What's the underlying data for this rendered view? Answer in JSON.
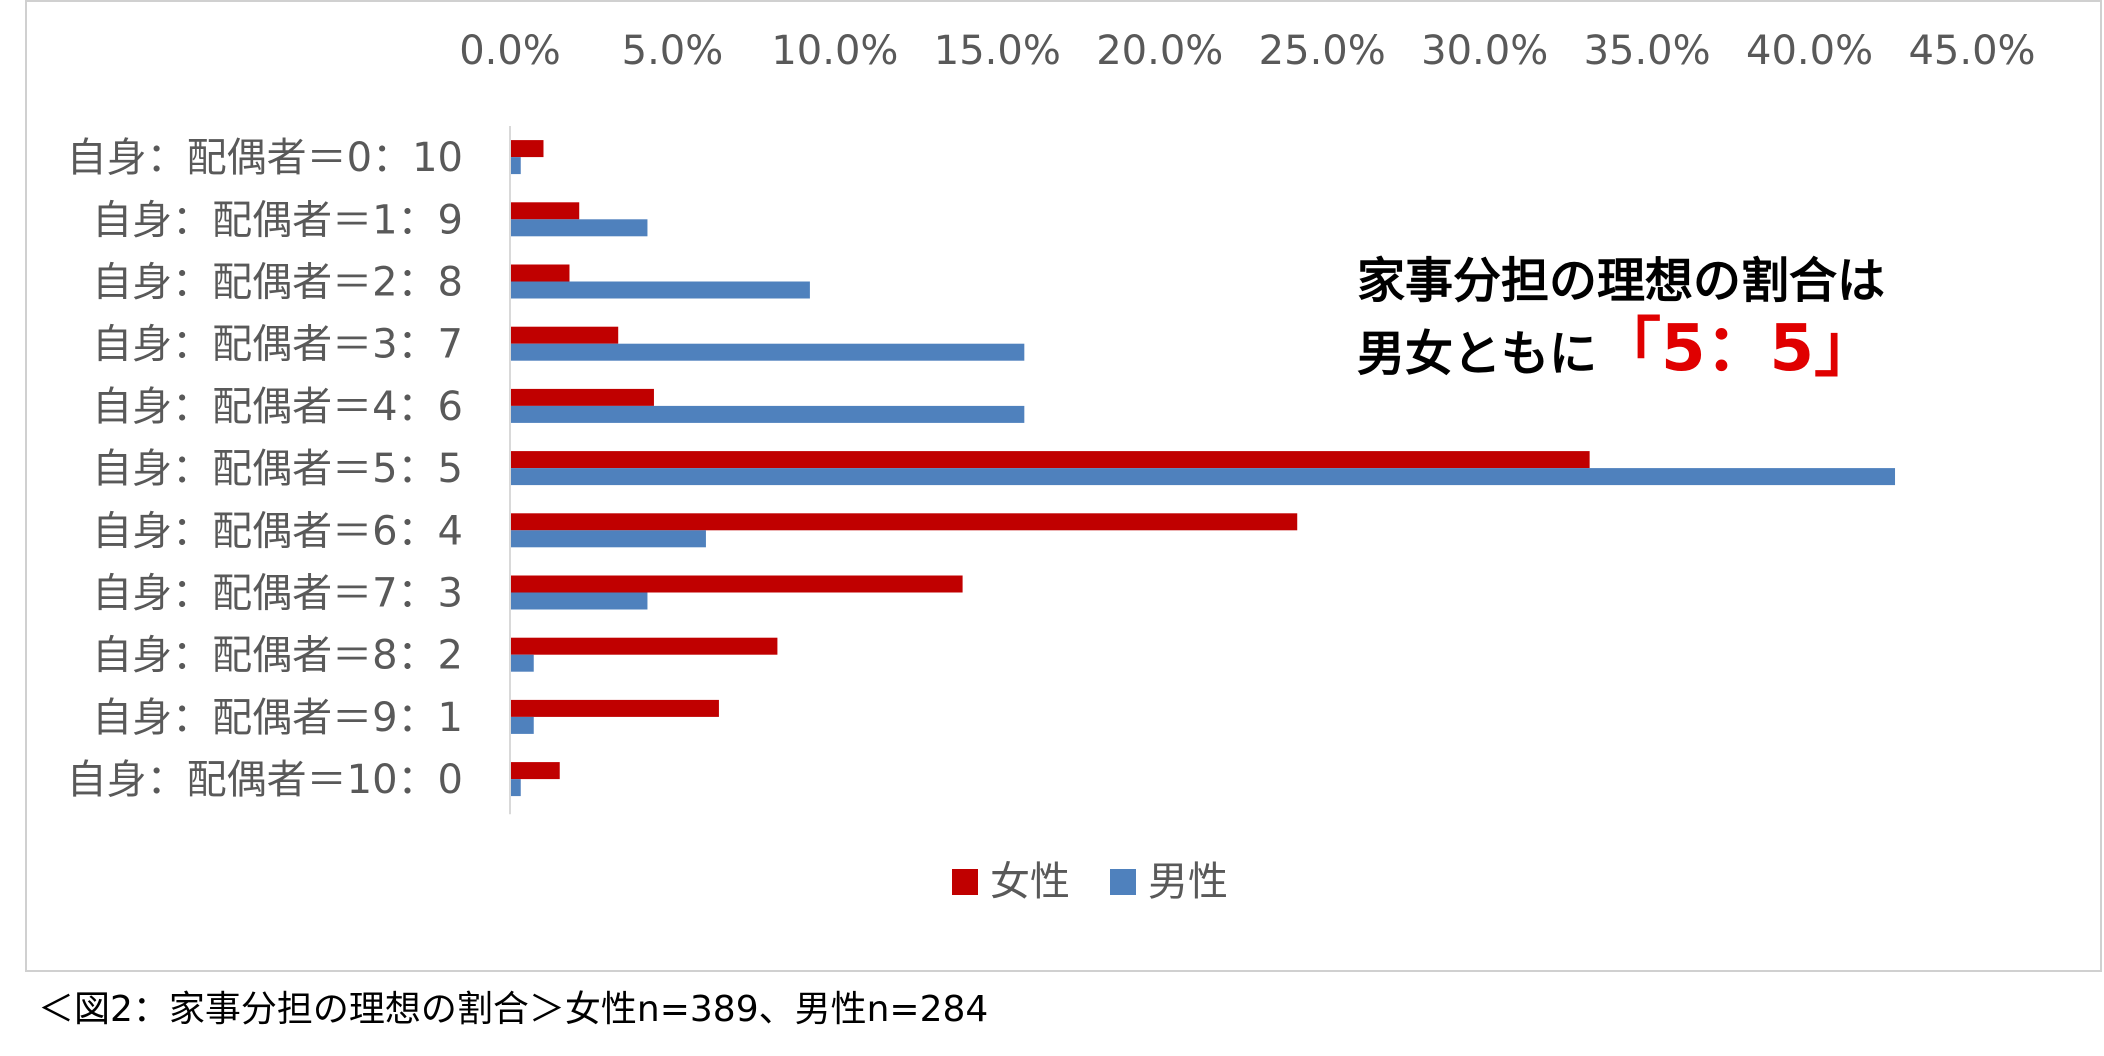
{
  "chart_data": {
    "type": "bar",
    "orientation": "horizontal",
    "categories": [
      "自身：配偶者＝0：10",
      "自身：配偶者＝1：9",
      "自身：配偶者＝2：8",
      "自身：配偶者＝3：7",
      "自身：配偶者＝4：6",
      "自身：配偶者＝5：5",
      "自身：配偶者＝6：4",
      "自身：配偶者＝7：3",
      "自身：配偶者＝8：2",
      "自身：配偶者＝9：1",
      "自身：配偶者＝10：0"
    ],
    "series": [
      {
        "name": "女性",
        "color": "#c00000",
        "values": [
          1.0,
          2.1,
          1.8,
          3.3,
          4.4,
          33.2,
          24.2,
          13.9,
          8.2,
          6.4,
          1.5
        ]
      },
      {
        "name": "男性",
        "color": "#4f81bd",
        "values": [
          0.3,
          4.2,
          9.2,
          15.8,
          15.8,
          42.6,
          6.0,
          4.2,
          0.7,
          0.7,
          0.3
        ]
      }
    ],
    "xlim": [
      0,
      45
    ],
    "xticks": [
      "0.0%",
      "5.0%",
      "10.0%",
      "15.0%",
      "20.0%",
      "25.0%",
      "30.0%",
      "35.0%",
      "40.0%",
      "45.0%"
    ],
    "x_axis_position": "top",
    "legend_position": "bottom",
    "grid": false
  },
  "annotation": {
    "line1": "家事分担の理想の割合は",
    "line2_prefix": "男女ともに",
    "line2_highlight": "「5：5」"
  },
  "caption": "＜図2：家事分担の理想の割合＞女性n=389、男性n=284"
}
